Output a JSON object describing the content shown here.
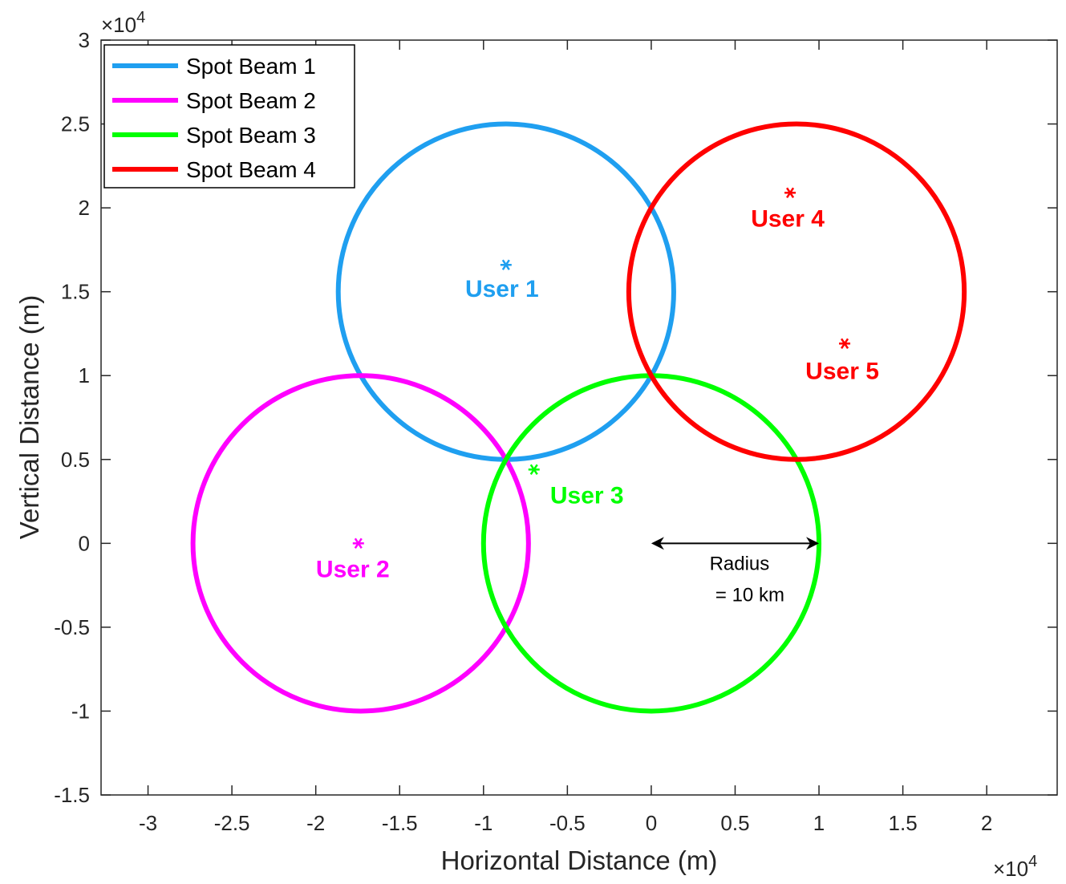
{
  "chart_data": {
    "type": "scatter",
    "xlabel": "Horizontal Distance (m)",
    "ylabel": "Vertical Distance (m)",
    "x_multiplier": {
      "base": "×10",
      "exponent": "4"
    },
    "y_multiplier": {
      "base": "×10",
      "exponent": "4"
    },
    "xlim": [
      -32800,
      24200
    ],
    "ylim": [
      -15000,
      30000
    ],
    "xticks": [
      {
        "value": -30000,
        "label": "-3"
      },
      {
        "value": -25000,
        "label": "-2.5"
      },
      {
        "value": -20000,
        "label": "-2"
      },
      {
        "value": -15000,
        "label": "-1.5"
      },
      {
        "value": -10000,
        "label": "-1"
      },
      {
        "value": -5000,
        "label": "-0.5"
      },
      {
        "value": 0,
        "label": "0"
      },
      {
        "value": 5000,
        "label": "0.5"
      },
      {
        "value": 10000,
        "label": "1"
      },
      {
        "value": 15000,
        "label": "1.5"
      },
      {
        "value": 20000,
        "label": "2"
      }
    ],
    "yticks": [
      {
        "value": -15000,
        "label": "-1.5"
      },
      {
        "value": -10000,
        "label": "-1"
      },
      {
        "value": -5000,
        "label": "-0.5"
      },
      {
        "value": 0,
        "label": "0"
      },
      {
        "value": 5000,
        "label": "0.5"
      },
      {
        "value": 10000,
        "label": "1"
      },
      {
        "value": 15000,
        "label": "1.5"
      },
      {
        "value": 20000,
        "label": "2"
      },
      {
        "value": 25000,
        "label": "2.5"
      },
      {
        "value": 30000,
        "label": "3"
      }
    ],
    "legend": "upper left",
    "beams": [
      {
        "name": "Spot Beam 1",
        "color": "#1f9ff0",
        "center_x": -8660,
        "center_y": 15000,
        "radius": 10000
      },
      {
        "name": "Spot Beam 2",
        "color": "#ff00ff",
        "center_x": -17320,
        "center_y": 0,
        "radius": 10000
      },
      {
        "name": "Spot Beam 3",
        "color": "#00ff00",
        "center_x": 0,
        "center_y": 0,
        "radius": 10000
      },
      {
        "name": "Spot Beam 4",
        "color": "#ff0000",
        "center_x": 8660,
        "center_y": 15000,
        "radius": 10000
      }
    ],
    "users": [
      {
        "label": "User 1",
        "color": "#1f9ff0",
        "x": -8660,
        "y": 16600
      },
      {
        "label": "User 2",
        "color": "#ff00ff",
        "x": -17460,
        "y": 0
      },
      {
        "label": "User 3",
        "color": "#00ff00",
        "x": -6990,
        "y": 4400
      },
      {
        "label": "User 4",
        "color": "#ff0000",
        "x": 8280,
        "y": 20900
      },
      {
        "label": "User 5",
        "color": "#ff0000",
        "x": 11530,
        "y": 11910
      }
    ],
    "annotation": [
      "Radius",
      "= 10 km"
    ]
  }
}
